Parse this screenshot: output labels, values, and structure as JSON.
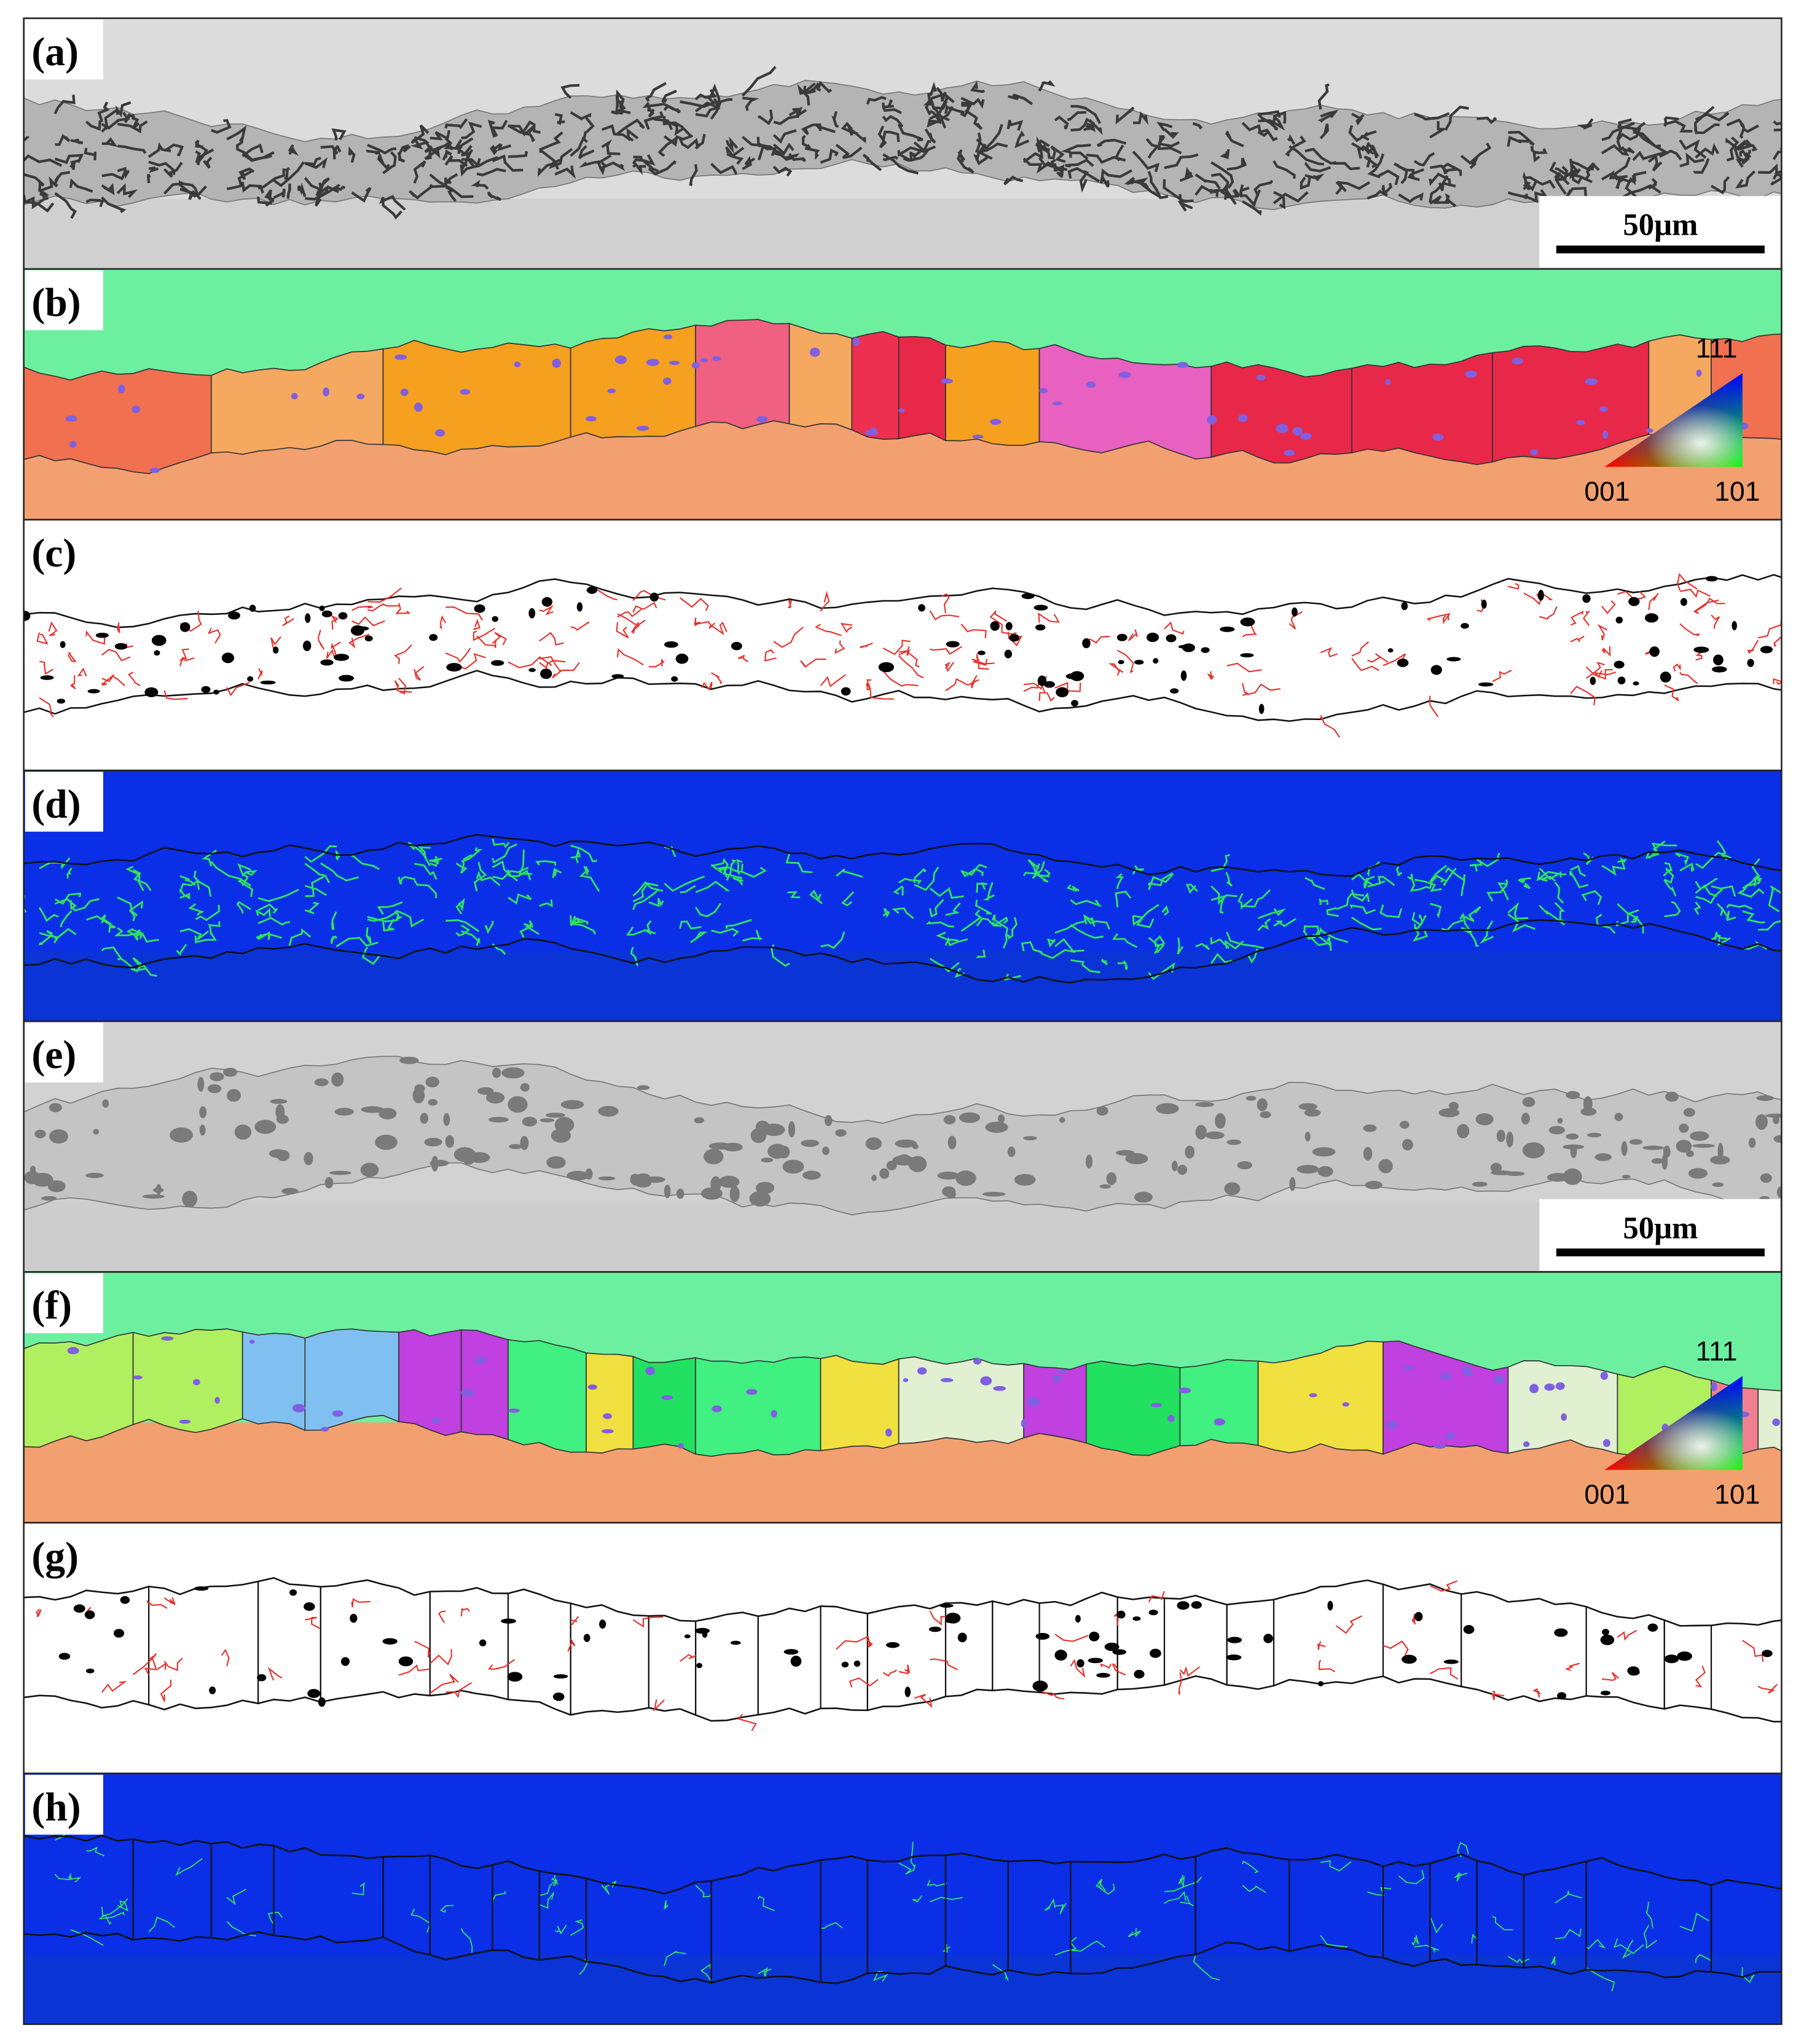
{
  "panels": [
    {
      "label": "(a)",
      "scale_bar": "50μm"
    },
    {
      "label": "(b)",
      "ipf_key": {
        "top": "111",
        "left": "001",
        "right": "101"
      }
    },
    {
      "label": "(c)"
    },
    {
      "label": "(d)"
    },
    {
      "label": "(e)",
      "scale_bar": "50μm"
    },
    {
      "label": "(f)",
      "ipf_key": {
        "top": "111",
        "left": "001",
        "right": "101"
      }
    },
    {
      "label": "(g)"
    },
    {
      "label": "(h)"
    }
  ]
}
